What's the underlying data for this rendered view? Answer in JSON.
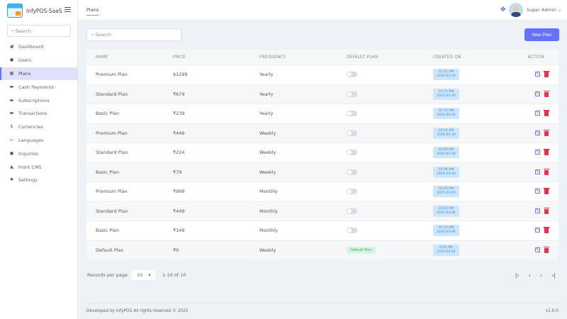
{
  "app": {
    "name": "InfyPOS-SaaS"
  },
  "sidebar": {
    "search_placeholder": "Search",
    "items": [
      {
        "label": "Dashboard",
        "icon": "dashboard-icon"
      },
      {
        "label": "Users",
        "icon": "user-icon"
      },
      {
        "label": "Plans",
        "icon": "calendar-icon",
        "active": true
      },
      {
        "label": "Cash Payments",
        "icon": "money-icon"
      },
      {
        "label": "Subscriptions",
        "icon": "subscription-icon"
      },
      {
        "label": "Transactions",
        "icon": "transaction-icon"
      },
      {
        "label": "Currencies",
        "icon": "dollar-icon"
      },
      {
        "label": "Languages",
        "icon": "language-icon"
      },
      {
        "label": "Inquiries",
        "icon": "question-icon"
      },
      {
        "label": "Front CMS",
        "icon": "home-icon"
      },
      {
        "label": "Settings",
        "icon": "gear-icon"
      }
    ]
  },
  "header": {
    "tab": "Plans",
    "user": "Super Admin"
  },
  "toolbar": {
    "search_placeholder": "Search",
    "new_label": "New Plan"
  },
  "table": {
    "columns": [
      "NAME",
      "PRICE",
      "FREQUENCY",
      "DEFAULT PLAN",
      "CREATED ON",
      "ACTION"
    ],
    "rows": [
      {
        "name": "Premium Plan",
        "price": "$1299",
        "frequency": "Yearly",
        "default": false,
        "time": "10:11 AM",
        "date": "2025-03-19"
      },
      {
        "name": "Standard Plan",
        "price": "₹679",
        "frequency": "Yearly",
        "default": false,
        "time": "10:11 AM",
        "date": "2025-03-19"
      },
      {
        "name": "Basic Plan",
        "price": "₹239",
        "frequency": "Yearly",
        "default": false,
        "time": "10:10 AM",
        "date": "2025-03-19"
      },
      {
        "name": "Premium Plan",
        "price": "₹449",
        "frequency": "Weekly",
        "default": false,
        "time": "10:10 AM",
        "date": "2025-03-19"
      },
      {
        "name": "Standard Plan",
        "price": "₹224",
        "frequency": "Weekly",
        "default": false,
        "time": "10:09 AM",
        "date": "2025-03-19"
      },
      {
        "name": "Basic Plan",
        "price": "₹79",
        "frequency": "Weekly",
        "default": false,
        "time": "10:08 AM",
        "date": "2025-03-19"
      },
      {
        "name": "Premium Plan",
        "price": "₹999",
        "frequency": "Monthly",
        "default": false,
        "time": "10:23 AM",
        "date": "2025-03-06"
      },
      {
        "name": "Standard Plan",
        "price": "₹449",
        "frequency": "Monthly",
        "default": false,
        "time": "10:22 AM",
        "date": "2025-03-06"
      },
      {
        "name": "Basic Plan",
        "price": "₹149",
        "frequency": "Monthly",
        "default": false,
        "time": "10:22 AM",
        "date": "2025-03-06"
      },
      {
        "name": "Default Plan",
        "price": "₹0",
        "frequency": "Weekly",
        "default": true,
        "default_label": "Default Plan",
        "time": "6:55 PM",
        "date": "2025-03-04"
      }
    ]
  },
  "pagination": {
    "records_label": "Records per page",
    "per_page": "10",
    "range": "1-10 of 10"
  },
  "footer": {
    "text": "Developed by InfyPOS All rights reserved © 2025",
    "version": "v1.0.0"
  },
  "colors": {
    "accent": "#6571ff",
    "danger": "#ef2f4a"
  }
}
